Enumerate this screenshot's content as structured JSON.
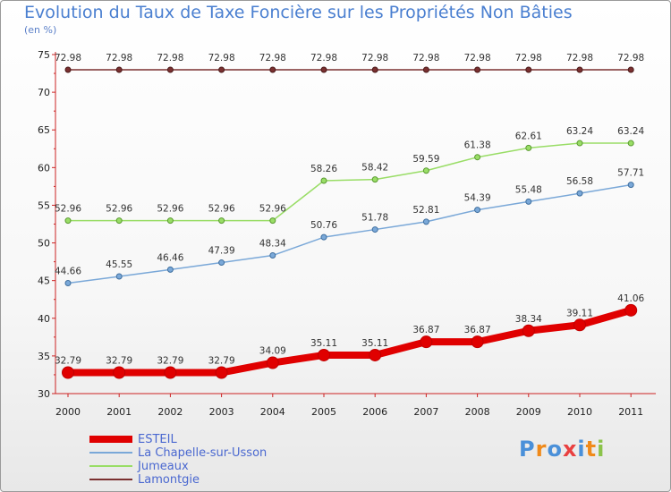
{
  "chart_data": {
    "type": "line",
    "title": "Evolution du Taux de Taxe Foncière sur les Propriétés Non Bâties",
    "unit_label": "(en %)",
    "categories": [
      "2000",
      "2001",
      "2002",
      "2003",
      "2004",
      "2005",
      "2006",
      "2007",
      "2008",
      "2009",
      "2010",
      "2011"
    ],
    "ylim": [
      30,
      75
    ],
    "yticks": [
      "30",
      "35",
      "40",
      "45",
      "50",
      "55",
      "60",
      "65",
      "70",
      "75"
    ],
    "grid": false,
    "legend_position": "bottom-left",
    "series": [
      {
        "name": "ESTEIL",
        "color": "#e00000",
        "values": [
          32.79,
          32.79,
          32.79,
          32.79,
          34.09,
          35.11,
          35.11,
          36.87,
          36.87,
          38.34,
          39.11,
          41.06
        ],
        "labels": [
          "32.79",
          "32.79",
          "32.79",
          "32.79",
          "34.09",
          "35.11",
          "35.11",
          "36.87",
          "36.87",
          "38.34",
          "39.11",
          "41.06"
        ]
      },
      {
        "name": "La Chapelle-sur-Usson",
        "color": "#7aa8d8",
        "values": [
          44.66,
          45.55,
          46.46,
          47.39,
          48.34,
          50.76,
          51.78,
          52.81,
          54.39,
          55.48,
          56.58,
          57.71
        ],
        "labels": [
          "44.66",
          "45.55",
          "46.46",
          "47.39",
          "48.34",
          "50.76",
          "51.78",
          "52.81",
          "54.39",
          "55.48",
          "56.58",
          "57.71"
        ]
      },
      {
        "name": "Jumeaux",
        "color": "#99dd66",
        "values": [
          52.96,
          52.96,
          52.96,
          52.96,
          52.96,
          58.26,
          58.42,
          59.59,
          61.38,
          62.61,
          63.24,
          63.24
        ],
        "labels": [
          "52.96",
          "52.96",
          "52.96",
          "52.96",
          "52.96",
          "58.26",
          "58.42",
          "59.59",
          "61.38",
          "62.61",
          "63.24",
          "63.24"
        ]
      },
      {
        "name": "Lamontgie",
        "color": "#7a3030",
        "values": [
          72.98,
          72.98,
          72.98,
          72.98,
          72.98,
          72.98,
          72.98,
          72.98,
          72.98,
          72.98,
          72.98,
          72.98
        ],
        "labels": [
          "72.98",
          "72.98",
          "72.98",
          "72.98",
          "72.98",
          "72.98",
          "72.98",
          "72.98",
          "72.98",
          "72.98",
          "72.98",
          "72.98"
        ]
      }
    ]
  },
  "logo": {
    "text": "Proxiti",
    "letter_colors": [
      "#4a90d9",
      "#f08a1a",
      "#4a90d9",
      "#e94040",
      "#4a90d9",
      "#f08a1a",
      "#8bc34a"
    ]
  }
}
